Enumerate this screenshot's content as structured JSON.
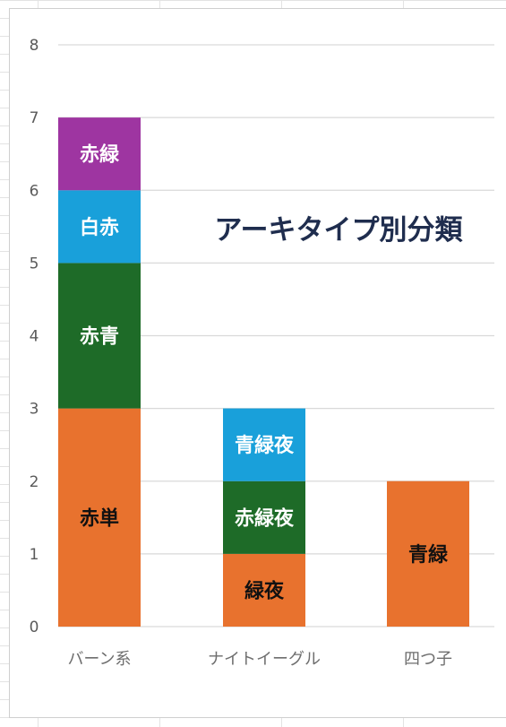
{
  "chart_data": {
    "type": "bar",
    "stacked": true,
    "title": "アーキタイプ別分類",
    "ylim": [
      0,
      8
    ],
    "yticks": [
      0,
      1,
      2,
      3,
      4,
      5,
      6,
      7,
      8
    ],
    "grid": true,
    "categories": [
      "バーン系",
      "ナイトイーグル",
      "四つ子"
    ],
    "stacks": [
      {
        "category": "バーン系",
        "segments": [
          {
            "label": "赤単",
            "value": 3,
            "color": "#E8722E",
            "text_color": "#111111"
          },
          {
            "label": "赤青",
            "value": 2,
            "color": "#1E6B28",
            "text_color": "#ffffff"
          },
          {
            "label": "白赤",
            "value": 1,
            "color": "#19A0DA",
            "text_color": "#ffffff"
          },
          {
            "label": "赤緑",
            "value": 1,
            "color": "#9E35A1",
            "text_color": "#ffffff"
          }
        ]
      },
      {
        "category": "ナイトイーグル",
        "segments": [
          {
            "label": "緑夜",
            "value": 1,
            "color": "#E8722E",
            "text_color": "#111111"
          },
          {
            "label": "赤緑夜",
            "value": 1,
            "color": "#1E6B28",
            "text_color": "#ffffff"
          },
          {
            "label": "青緑夜",
            "value": 1,
            "color": "#19A0DA",
            "text_color": "#ffffff"
          }
        ]
      },
      {
        "category": "四つ子",
        "segments": [
          {
            "label": "青緑",
            "value": 2,
            "color": "#E8722E",
            "text_color": "#111111"
          }
        ]
      }
    ]
  }
}
